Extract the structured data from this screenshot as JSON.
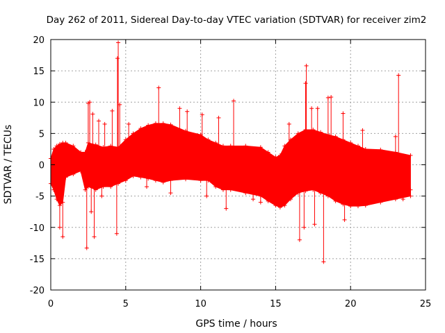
{
  "chart_data": {
    "type": "scatter",
    "title": "Day 262 of 2011, Sidereal Day-to-day VTEC variation (SDTVAR) for receiver zim2",
    "xlabel": "GPS time / hours",
    "ylabel": "SDTVAR / TECUs",
    "xlim": [
      0,
      25
    ],
    "ylim": [
      -20,
      20
    ],
    "x_ticks": [
      0,
      5,
      10,
      15,
      20,
      25
    ],
    "x_tick_labels": [
      "0",
      "5",
      "10",
      "15",
      "20",
      "25"
    ],
    "y_ticks": [
      -20,
      -15,
      -10,
      -5,
      0,
      5,
      10,
      15,
      20
    ],
    "y_tick_labels": [
      "-20",
      "-15",
      "-10",
      "-5",
      "0",
      "5",
      "10",
      "15",
      "20"
    ],
    "grid": true,
    "series_color": "#ff0000",
    "marker": "plus",
    "series": [
      {
        "name": "SDTVAR",
        "envelope": {
          "x": [
            0.0,
            0.2,
            0.4,
            0.6,
            0.8,
            1.0,
            1.5,
            2.0,
            2.3,
            2.5,
            3.0,
            3.5,
            4.0,
            4.5,
            5.0,
            5.5,
            6.0,
            6.5,
            7.0,
            7.5,
            8.0,
            9.0,
            10.0,
            10.5,
            11.0,
            11.5,
            12.0,
            13.0,
            14.0,
            14.5,
            15.0,
            15.3,
            15.6,
            16.0,
            16.5,
            17.0,
            17.5,
            18.0,
            18.5,
            19.0,
            19.5,
            20.0,
            20.5,
            21.0,
            22.0,
            23.0,
            24.0
          ],
          "upper": [
            1.0,
            2.5,
            3.0,
            3.3,
            3.5,
            3.5,
            3.0,
            2.0,
            2.0,
            3.5,
            3.2,
            2.8,
            3.0,
            2.8,
            4.0,
            5.0,
            5.8,
            6.3,
            6.6,
            6.6,
            6.4,
            5.4,
            4.8,
            4.0,
            3.5,
            3.0,
            3.0,
            3.0,
            2.8,
            2.0,
            1.2,
            1.5,
            3.0,
            4.0,
            5.0,
            5.6,
            5.6,
            5.2,
            4.8,
            4.5,
            4.0,
            3.5,
            3.0,
            2.5,
            2.4,
            2.0,
            1.5
          ],
          "lower": [
            -3.0,
            -4.0,
            -5.5,
            -6.5,
            -6.0,
            -2.0,
            -1.5,
            -1.0,
            -4.0,
            -3.5,
            -4.0,
            -3.5,
            -3.5,
            -3.0,
            -2.5,
            -1.8,
            -2.0,
            -2.2,
            -2.5,
            -2.8,
            -2.5,
            -2.3,
            -2.5,
            -2.5,
            -3.5,
            -4.0,
            -4.0,
            -4.5,
            -5.0,
            -5.8,
            -6.5,
            -6.8,
            -6.5,
            -5.5,
            -4.5,
            -4.2,
            -4.0,
            -4.5,
            -5.0,
            -5.8,
            -6.3,
            -6.6,
            -6.6,
            -6.5,
            -6.0,
            -5.5,
            -5.0
          ]
        },
        "spikes": [
          {
            "x": 0.6,
            "y": -10.0
          },
          {
            "x": 0.8,
            "y": -11.5
          },
          {
            "x": 2.4,
            "y": -13.3
          },
          {
            "x": 2.5,
            "y": 9.8
          },
          {
            "x": 2.6,
            "y": 10.0
          },
          {
            "x": 2.7,
            "y": -7.5
          },
          {
            "x": 2.8,
            "y": 8.1
          },
          {
            "x": 2.9,
            "y": -11.5
          },
          {
            "x": 3.2,
            "y": 7.0
          },
          {
            "x": 3.4,
            "y": -5.0
          },
          {
            "x": 3.6,
            "y": 6.5
          },
          {
            "x": 4.1,
            "y": 8.6
          },
          {
            "x": 4.4,
            "y": -11.0
          },
          {
            "x": 4.45,
            "y": 17.0
          },
          {
            "x": 4.5,
            "y": 19.5
          },
          {
            "x": 4.6,
            "y": 9.6
          },
          {
            "x": 5.2,
            "y": 6.5
          },
          {
            "x": 6.4,
            "y": -3.5
          },
          {
            "x": 7.2,
            "y": 12.3
          },
          {
            "x": 8.0,
            "y": -4.5
          },
          {
            "x": 8.6,
            "y": 9.0
          },
          {
            "x": 9.1,
            "y": 8.5
          },
          {
            "x": 10.1,
            "y": 8.0
          },
          {
            "x": 10.4,
            "y": -5.0
          },
          {
            "x": 11.2,
            "y": 7.5
          },
          {
            "x": 11.7,
            "y": -7.0
          },
          {
            "x": 12.2,
            "y": 10.2
          },
          {
            "x": 13.5,
            "y": -5.5
          },
          {
            "x": 14.0,
            "y": -6.0
          },
          {
            "x": 15.9,
            "y": 6.5
          },
          {
            "x": 16.6,
            "y": -12.0
          },
          {
            "x": 16.9,
            "y": -10.0
          },
          {
            "x": 17.0,
            "y": 13.0
          },
          {
            "x": 17.05,
            "y": 15.8
          },
          {
            "x": 17.4,
            "y": 9.0
          },
          {
            "x": 17.6,
            "y": -9.5
          },
          {
            "x": 17.8,
            "y": 9.0
          },
          {
            "x": 18.2,
            "y": -15.5
          },
          {
            "x": 18.5,
            "y": 10.7
          },
          {
            "x": 18.7,
            "y": 10.8
          },
          {
            "x": 19.5,
            "y": 8.2
          },
          {
            "x": 19.6,
            "y": -8.8
          },
          {
            "x": 20.8,
            "y": 5.5
          },
          {
            "x": 23.0,
            "y": 4.5
          },
          {
            "x": 23.2,
            "y": 14.3
          },
          {
            "x": 23.5,
            "y": -5.5
          },
          {
            "x": 24.0,
            "y": -4.0
          }
        ]
      }
    ]
  }
}
